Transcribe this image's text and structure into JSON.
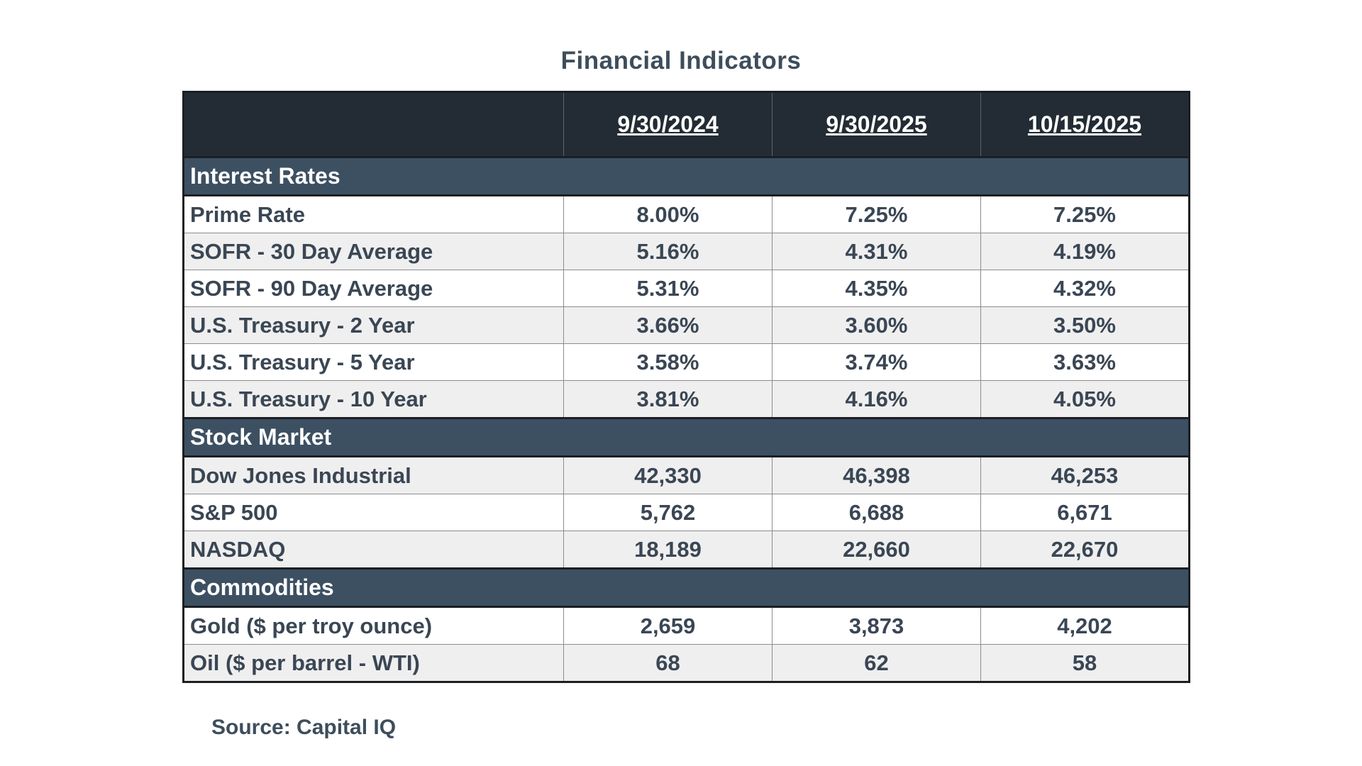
{
  "title": "Financial Indicators",
  "columns": [
    "",
    "9/30/2024",
    "9/30/2025",
    "10/15/2025"
  ],
  "sections": [
    {
      "name": "Interest Rates",
      "rows": [
        {
          "label": "Prime Rate",
          "values": [
            "8.00%",
            "7.25%",
            "7.25%"
          ]
        },
        {
          "label": "SOFR - 30 Day Average",
          "values": [
            "5.16%",
            "4.31%",
            "4.19%"
          ]
        },
        {
          "label": "SOFR - 90 Day Average",
          "values": [
            "5.31%",
            "4.35%",
            "4.32%"
          ]
        },
        {
          "label": "U.S. Treasury - 2 Year",
          "values": [
            "3.66%",
            "3.60%",
            "3.50%"
          ]
        },
        {
          "label": "U.S. Treasury - 5 Year",
          "values": [
            "3.58%",
            "3.74%",
            "3.63%"
          ]
        },
        {
          "label": "U.S. Treasury - 10 Year",
          "values": [
            "3.81%",
            "4.16%",
            "4.05%"
          ]
        }
      ]
    },
    {
      "name": "Stock Market",
      "rows": [
        {
          "label": "Dow Jones Industrial",
          "values": [
            "42,330",
            "46,398",
            "46,253"
          ]
        },
        {
          "label": "S&P 500",
          "values": [
            "5,762",
            "6,688",
            "6,671"
          ]
        },
        {
          "label": "NASDAQ",
          "values": [
            "18,189",
            "22,660",
            "22,670"
          ]
        }
      ]
    },
    {
      "name": "Commodities",
      "rows": [
        {
          "label": "Gold ($ per troy ounce)",
          "values": [
            "2,659",
            "3,873",
            "4,202"
          ]
        },
        {
          "label": "Oil ($ per barrel - WTI)",
          "values": [
            "68",
            "62",
            "58"
          ]
        }
      ]
    }
  ],
  "source": "Source: Capital IQ"
}
